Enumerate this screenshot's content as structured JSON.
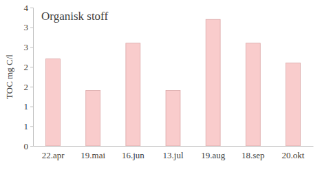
{
  "chart_data": {
    "type": "bar",
    "title": "Organisk stoff",
    "y_label": "TOC mg C/l",
    "categories": [
      "22.apr",
      "19.mai",
      "16.jun",
      "13.jul",
      "19.aug",
      "18.sep",
      "20.okt"
    ],
    "values": [
      2.2,
      1.4,
      2.6,
      1.4,
      3.2,
      2.6,
      2.1
    ],
    "color": "#f9cccc",
    "ylim": [
      0,
      3.5
    ],
    "yticks": [
      {
        "value": 0,
        "label": "0"
      },
      {
        "value": 0.5,
        "label": "1"
      },
      {
        "value": 1,
        "label": "1"
      },
      {
        "value": 1.5,
        "label": "2"
      },
      {
        "value": 2,
        "label": "2"
      },
      {
        "value": 2.5,
        "label": "3"
      },
      {
        "value": 3,
        "label": "3"
      },
      {
        "value": 3.5,
        "label": "4"
      }
    ],
    "grid": false
  }
}
